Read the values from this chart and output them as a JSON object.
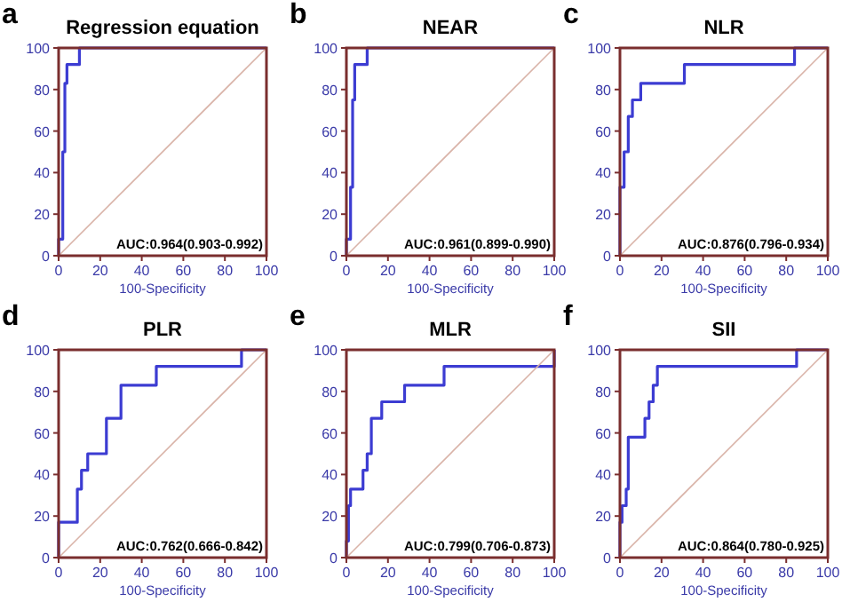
{
  "chart_data": [
    {
      "type": "line",
      "title": "Regression equation",
      "xlabel": "100-Specificity",
      "annotations": [
        "a",
        "AUC:0.964(0.903-0.992)"
      ],
      "xlim": [
        0,
        100
      ],
      "ylim": [
        0,
        100
      ],
      "xticks": [
        0,
        20,
        40,
        60,
        80,
        100
      ],
      "yticks": [
        0,
        20,
        40,
        60,
        80,
        100
      ],
      "grid": false,
      "series": [
        {
          "color": "#3c3cd2",
          "x": [
            0,
            0,
            2,
            2,
            3,
            3,
            4,
            4,
            10,
            10,
            100
          ],
          "values": [
            0,
            8,
            8,
            50,
            50,
            83,
            83,
            92,
            92,
            100,
            100
          ]
        },
        {
          "color": "#d9b3a8",
          "x": [
            0,
            100
          ],
          "values": [
            0,
            100
          ]
        }
      ]
    },
    {
      "type": "line",
      "title": "NEAR",
      "xlabel": "100-Specificity",
      "annotations": [
        "b",
        "AUC:0.961(0.899-0.990)"
      ],
      "xlim": [
        0,
        100
      ],
      "ylim": [
        0,
        100
      ],
      "xticks": [
        0,
        20,
        40,
        60,
        80,
        100
      ],
      "yticks": [
        0,
        20,
        40,
        60,
        80,
        100
      ],
      "grid": false,
      "series": [
        {
          "color": "#3c3cd2",
          "x": [
            0,
            0,
            2,
            2,
            3,
            3,
            4,
            4,
            10,
            10,
            100
          ],
          "values": [
            0,
            8,
            8,
            33,
            33,
            75,
            75,
            92,
            92,
            100,
            100
          ]
        },
        {
          "color": "#d9b3a8",
          "x": [
            0,
            100
          ],
          "values": [
            0,
            100
          ]
        }
      ]
    },
    {
      "type": "line",
      "title": "NLR",
      "xlabel": "100-Specificity",
      "annotations": [
        "c",
        "AUC:0.876(0.796-0.934)"
      ],
      "xlim": [
        0,
        100
      ],
      "ylim": [
        0,
        100
      ],
      "xticks": [
        0,
        20,
        40,
        60,
        80,
        100
      ],
      "yticks": [
        0,
        20,
        40,
        60,
        80,
        100
      ],
      "grid": false,
      "series": [
        {
          "color": "#3c3cd2",
          "x": [
            0,
            0,
            2,
            2,
            4,
            4,
            6,
            6,
            10,
            10,
            31,
            31,
            84,
            84,
            100
          ],
          "values": [
            0,
            33,
            33,
            50,
            50,
            67,
            67,
            75,
            75,
            83,
            83,
            92,
            92,
            100,
            100
          ]
        },
        {
          "color": "#d9b3a8",
          "x": [
            0,
            100
          ],
          "values": [
            0,
            100
          ]
        }
      ]
    },
    {
      "type": "line",
      "title": "PLR",
      "xlabel": "100-Specificity",
      "annotations": [
        "d",
        "AUC:0.762(0.666-0.842)"
      ],
      "xlim": [
        0,
        100
      ],
      "ylim": [
        0,
        100
      ],
      "xticks": [
        0,
        20,
        40,
        60,
        80,
        100
      ],
      "yticks": [
        0,
        20,
        40,
        60,
        80,
        100
      ],
      "grid": false,
      "series": [
        {
          "color": "#3c3cd2",
          "x": [
            0,
            0,
            9,
            9,
            11,
            11,
            14,
            14,
            23,
            23,
            30,
            30,
            47,
            47,
            88,
            88,
            100
          ],
          "values": [
            0,
            17,
            17,
            33,
            33,
            42,
            42,
            50,
            50,
            67,
            67,
            83,
            83,
            92,
            92,
            100,
            100
          ]
        },
        {
          "color": "#d9b3a8",
          "x": [
            0,
            100
          ],
          "values": [
            0,
            100
          ]
        }
      ]
    },
    {
      "type": "line",
      "title": "MLR",
      "xlabel": "100-Specificity",
      "annotations": [
        "e",
        "AUC:0.799(0.706-0.873)"
      ],
      "xlim": [
        0,
        100
      ],
      "ylim": [
        0,
        100
      ],
      "xticks": [
        0,
        20,
        40,
        60,
        80,
        100
      ],
      "yticks": [
        0,
        20,
        40,
        60,
        80,
        100
      ],
      "grid": false,
      "series": [
        {
          "color": "#3c3cd2",
          "x": [
            0,
            0,
            1,
            1,
            2,
            2,
            8,
            8,
            10,
            10,
            12,
            12,
            17,
            17,
            28,
            28,
            47,
            47,
            100,
            100
          ],
          "values": [
            0,
            8,
            8,
            25,
            25,
            33,
            33,
            42,
            42,
            50,
            50,
            67,
            67,
            75,
            75,
            83,
            83,
            92,
            92,
            100
          ]
        },
        {
          "color": "#d9b3a8",
          "x": [
            0,
            100
          ],
          "values": [
            0,
            100
          ]
        }
      ]
    },
    {
      "type": "line",
      "title": "SII",
      "xlabel": "100-Specificity",
      "annotations": [
        "f",
        "AUC:0.864(0.780-0.925)"
      ],
      "xlim": [
        0,
        100
      ],
      "ylim": [
        0,
        100
      ],
      "xticks": [
        0,
        20,
        40,
        60,
        80,
        100
      ],
      "yticks": [
        0,
        20,
        40,
        60,
        80,
        100
      ],
      "grid": false,
      "series": [
        {
          "color": "#3c3cd2",
          "x": [
            0,
            0,
            1,
            1,
            3,
            3,
            4,
            4,
            12,
            12,
            14,
            14,
            16,
            16,
            18,
            18,
            85,
            85,
            100
          ],
          "values": [
            0,
            17,
            17,
            25,
            25,
            33,
            33,
            58,
            58,
            67,
            67,
            75,
            75,
            83,
            83,
            92,
            92,
            100,
            100
          ]
        },
        {
          "color": "#d9b3a8",
          "x": [
            0,
            100
          ],
          "values": [
            0,
            100
          ]
        }
      ]
    }
  ]
}
